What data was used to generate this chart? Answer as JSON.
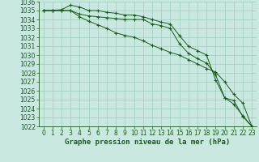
{
  "xlabel": "Graphe pression niveau de la mer (hPa)",
  "ylim": [
    1022,
    1036
  ],
  "xlim": [
    -0.5,
    23.5
  ],
  "yticks": [
    1022,
    1023,
    1024,
    1025,
    1026,
    1027,
    1028,
    1029,
    1030,
    1031,
    1032,
    1033,
    1034,
    1035,
    1036
  ],
  "xticks": [
    0,
    1,
    2,
    3,
    4,
    5,
    6,
    7,
    8,
    9,
    10,
    11,
    12,
    13,
    14,
    15,
    16,
    17,
    18,
    19,
    20,
    21,
    22,
    23
  ],
  "bg_color": "#c8e8e0",
  "line_color": "#1a5c1a",
  "grid_color": "#9eccc0",
  "line1": [
    1035.0,
    1035.0,
    1035.1,
    1035.6,
    1035.4,
    1035.0,
    1035.0,
    1034.8,
    1034.7,
    1034.5,
    1034.5,
    1034.3,
    1034.0,
    1033.7,
    1033.5,
    1032.2,
    1031.0,
    1030.5,
    1030.0,
    1027.2,
    1025.2,
    1024.5,
    1023.2,
    1022.0
  ],
  "line2": [
    1035.0,
    1035.0,
    1035.0,
    1035.0,
    1034.6,
    1034.4,
    1034.3,
    1034.2,
    1034.1,
    1034.0,
    1034.0,
    1034.0,
    1033.5,
    1033.3,
    1033.0,
    1031.3,
    1030.2,
    1029.6,
    1029.1,
    1027.8,
    1025.2,
    1024.9,
    1023.1,
    1022.0
  ],
  "line3": [
    1035.0,
    1035.0,
    1035.0,
    1035.0,
    1034.3,
    1033.8,
    1033.4,
    1033.0,
    1032.5,
    1032.2,
    1032.0,
    1031.6,
    1031.1,
    1030.7,
    1030.3,
    1030.0,
    1029.5,
    1029.0,
    1028.5,
    1028.1,
    1027.0,
    1025.6,
    1024.6,
    1022.0
  ],
  "marker": "+",
  "markersize": 3,
  "markeredgewidth": 0.8,
  "linewidth": 0.7,
  "tick_fontsize": 5.5,
  "xlabel_fontsize": 6.5
}
